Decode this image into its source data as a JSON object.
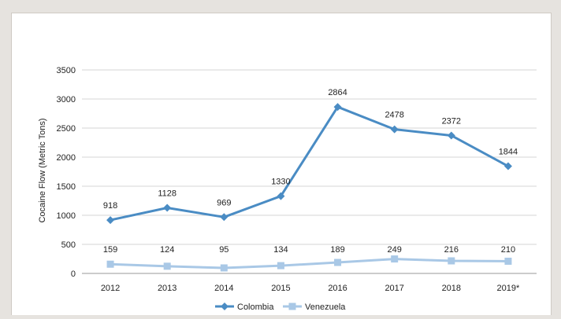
{
  "chart_data": {
    "type": "line",
    "title": "",
    "xlabel": "",
    "ylabel": "Cocaine Flow (Metric Tons)",
    "ylim": [
      0,
      3500
    ],
    "yticks": [
      0,
      500,
      1000,
      1500,
      2000,
      2500,
      3000,
      3500
    ],
    "categories": [
      "2012",
      "2013",
      "2014",
      "2015",
      "2016",
      "2017",
      "2018",
      "2019*"
    ],
    "grid": "horizontal",
    "legend_position": "bottom",
    "series": [
      {
        "name": "Colombia",
        "color": "#4a8cc4",
        "marker": "diamond",
        "values": [
          918,
          1128,
          969,
          1330,
          2864,
          2478,
          2372,
          1844
        ],
        "labels": [
          "918",
          "1128",
          "969",
          "1330",
          "2864",
          "2478",
          "2372",
          "1844"
        ]
      },
      {
        "name": "Venezuela",
        "color": "#a9c8e6",
        "marker": "square",
        "values": [
          159,
          124,
          95,
          134,
          189,
          249,
          216,
          210
        ],
        "labels": [
          "159",
          "124",
          "95",
          "134",
          "189",
          "249",
          "216",
          "210"
        ]
      }
    ]
  }
}
